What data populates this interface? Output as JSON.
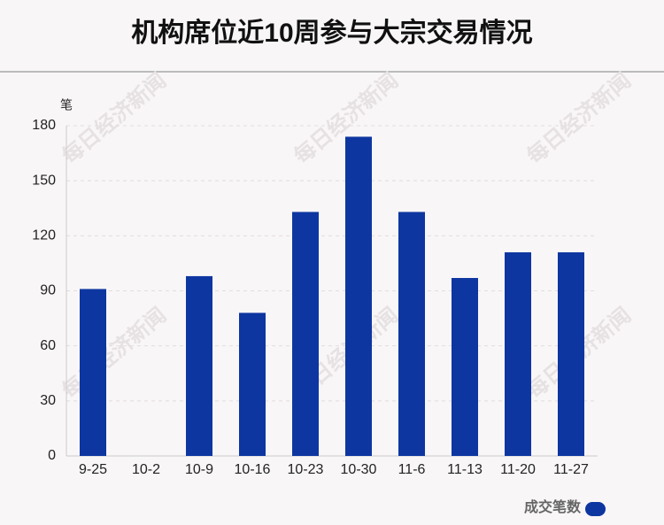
{
  "chart_data": {
    "type": "bar",
    "title": "机构席位近10周参与大宗交易情况",
    "y_label": "笔",
    "categories": [
      "9-25",
      "10-2",
      "10-9",
      "10-16",
      "10-23",
      "10-30",
      "11-6",
      "11-13",
      "11-20",
      "11-27"
    ],
    "series": [
      {
        "name": "成交笔数",
        "color": "#0d36a0",
        "values": [
          91,
          0,
          98,
          78,
          133,
          174,
          133,
          97,
          111,
          111
        ]
      }
    ],
    "ylim": [
      0,
      180
    ],
    "yticks": [
      0,
      30,
      60,
      90,
      120,
      150,
      180
    ],
    "grid": true,
    "legend": "bottom-right",
    "watermark": "每日经济新闻"
  }
}
